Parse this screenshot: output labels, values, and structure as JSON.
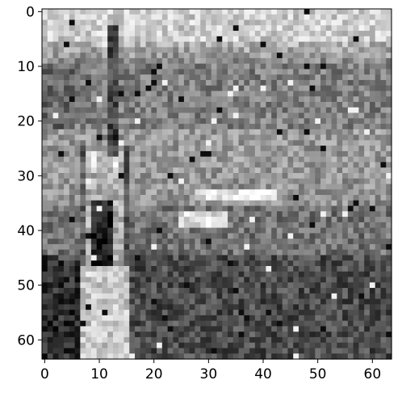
{
  "chart_data": {
    "type": "heatmap",
    "colormap": "gray",
    "grid": false,
    "title": "",
    "xlabel": "",
    "ylabel": "",
    "image_shape": [
      64,
      64
    ],
    "xlim": [
      -0.5,
      63.5
    ],
    "ylim": [
      63.5,
      -0.5
    ],
    "x_ticks": [
      0,
      10,
      20,
      30,
      40,
      50,
      60
    ],
    "y_ticks": [
      0,
      10,
      20,
      30,
      40,
      50,
      60
    ],
    "x_tick_labels": [
      "0",
      "10",
      "20",
      "30",
      "40",
      "50",
      "60"
    ],
    "y_tick_labels": [
      "0",
      "10",
      "20",
      "30",
      "40",
      "50",
      "60"
    ],
    "description_of_content": ""
  }
}
